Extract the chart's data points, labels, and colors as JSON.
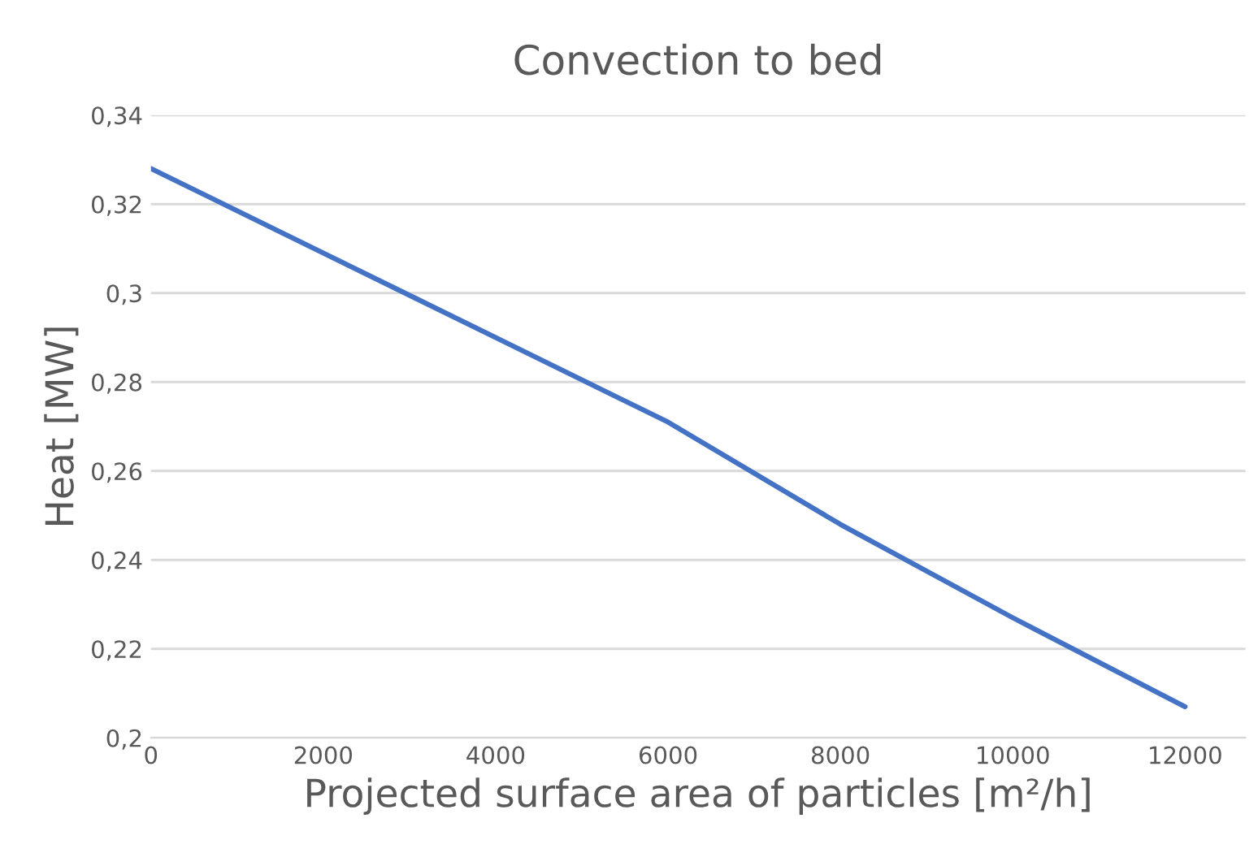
{
  "chart_data": {
    "type": "line",
    "title": "Convection to bed",
    "xlabel": "Projected surface area of particles [m²/h]",
    "ylabel": "Heat [MW]",
    "x": [
      0,
      2000,
      4000,
      6000,
      8000,
      10000,
      12000
    ],
    "series": [
      {
        "color": "#4472c4",
        "values": [
          0.328,
          0.309,
          0.29,
          0.271,
          0.248,
          0.227,
          0.207
        ]
      }
    ],
    "xlim": [
      0,
      12700
    ],
    "xticks": [
      0,
      2000,
      4000,
      6000,
      8000,
      10000,
      12000
    ],
    "ylim": [
      0.2,
      0.34
    ],
    "yticks": [
      {
        "value": 0.2,
        "label": "0,2"
      },
      {
        "value": 0.22,
        "label": "0,22"
      },
      {
        "value": 0.24,
        "label": "0,24"
      },
      {
        "value": 0.26,
        "label": "0,26"
      },
      {
        "value": 0.28,
        "label": "0,28"
      },
      {
        "value": 0.3,
        "label": "0,3"
      },
      {
        "value": 0.32,
        "label": "0,32"
      },
      {
        "value": 0.34,
        "label": "0,34"
      }
    ],
    "grid": "y",
    "legend": false
  }
}
